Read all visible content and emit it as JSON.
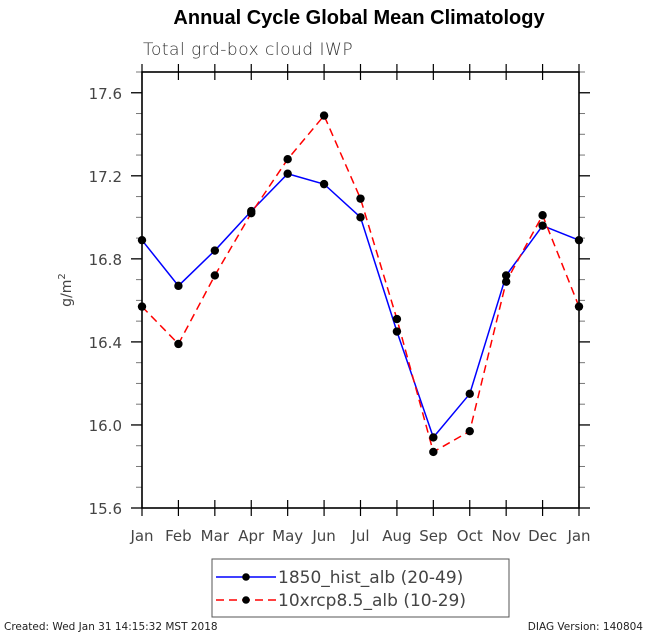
{
  "chart_data": {
    "type": "line",
    "title": "Annual Cycle Global Mean Climatology",
    "subtitle": "Total grd-box cloud IWP",
    "xlabel": "",
    "ylabel": "g/m",
    "ylabel_superscript": "2",
    "categories": [
      "Jan",
      "Feb",
      "Mar",
      "Apr",
      "May",
      "Jun",
      "Jul",
      "Aug",
      "Sep",
      "Oct",
      "Nov",
      "Dec",
      "Jan"
    ],
    "ylim": [
      15.6,
      17.7
    ],
    "yticks": [
      15.6,
      16.0,
      16.4,
      16.8,
      17.2,
      17.6
    ],
    "ytick_labels": [
      "15.6",
      "16.0",
      "16.4",
      "16.8",
      "17.2",
      "17.6"
    ],
    "yminor_step": 0.1,
    "grid": false,
    "legend_position": "bottom-center",
    "series": [
      {
        "name": "1850_hist_alb (20-49)",
        "color": "#0000ff",
        "line_style": "solid",
        "marker": "filled-circle",
        "marker_color": "#000000",
        "values": [
          16.89,
          16.67,
          16.84,
          17.03,
          17.21,
          17.16,
          17.0,
          16.45,
          15.94,
          16.15,
          16.72,
          16.96,
          16.89
        ]
      },
      {
        "name": "10xrcp8.5_alb (10-29)",
        "color": "#ff0000",
        "line_style": "dashed",
        "marker": "filled-circle",
        "marker_color": "#000000",
        "values": [
          16.57,
          16.39,
          16.72,
          17.02,
          17.28,
          17.49,
          17.09,
          16.51,
          15.87,
          15.97,
          16.69,
          17.01,
          16.57
        ]
      }
    ]
  },
  "footer": {
    "created": "Created: Wed Jan 31 14:15:32 MST 2018",
    "version": "DIAG Version: 140804"
  }
}
